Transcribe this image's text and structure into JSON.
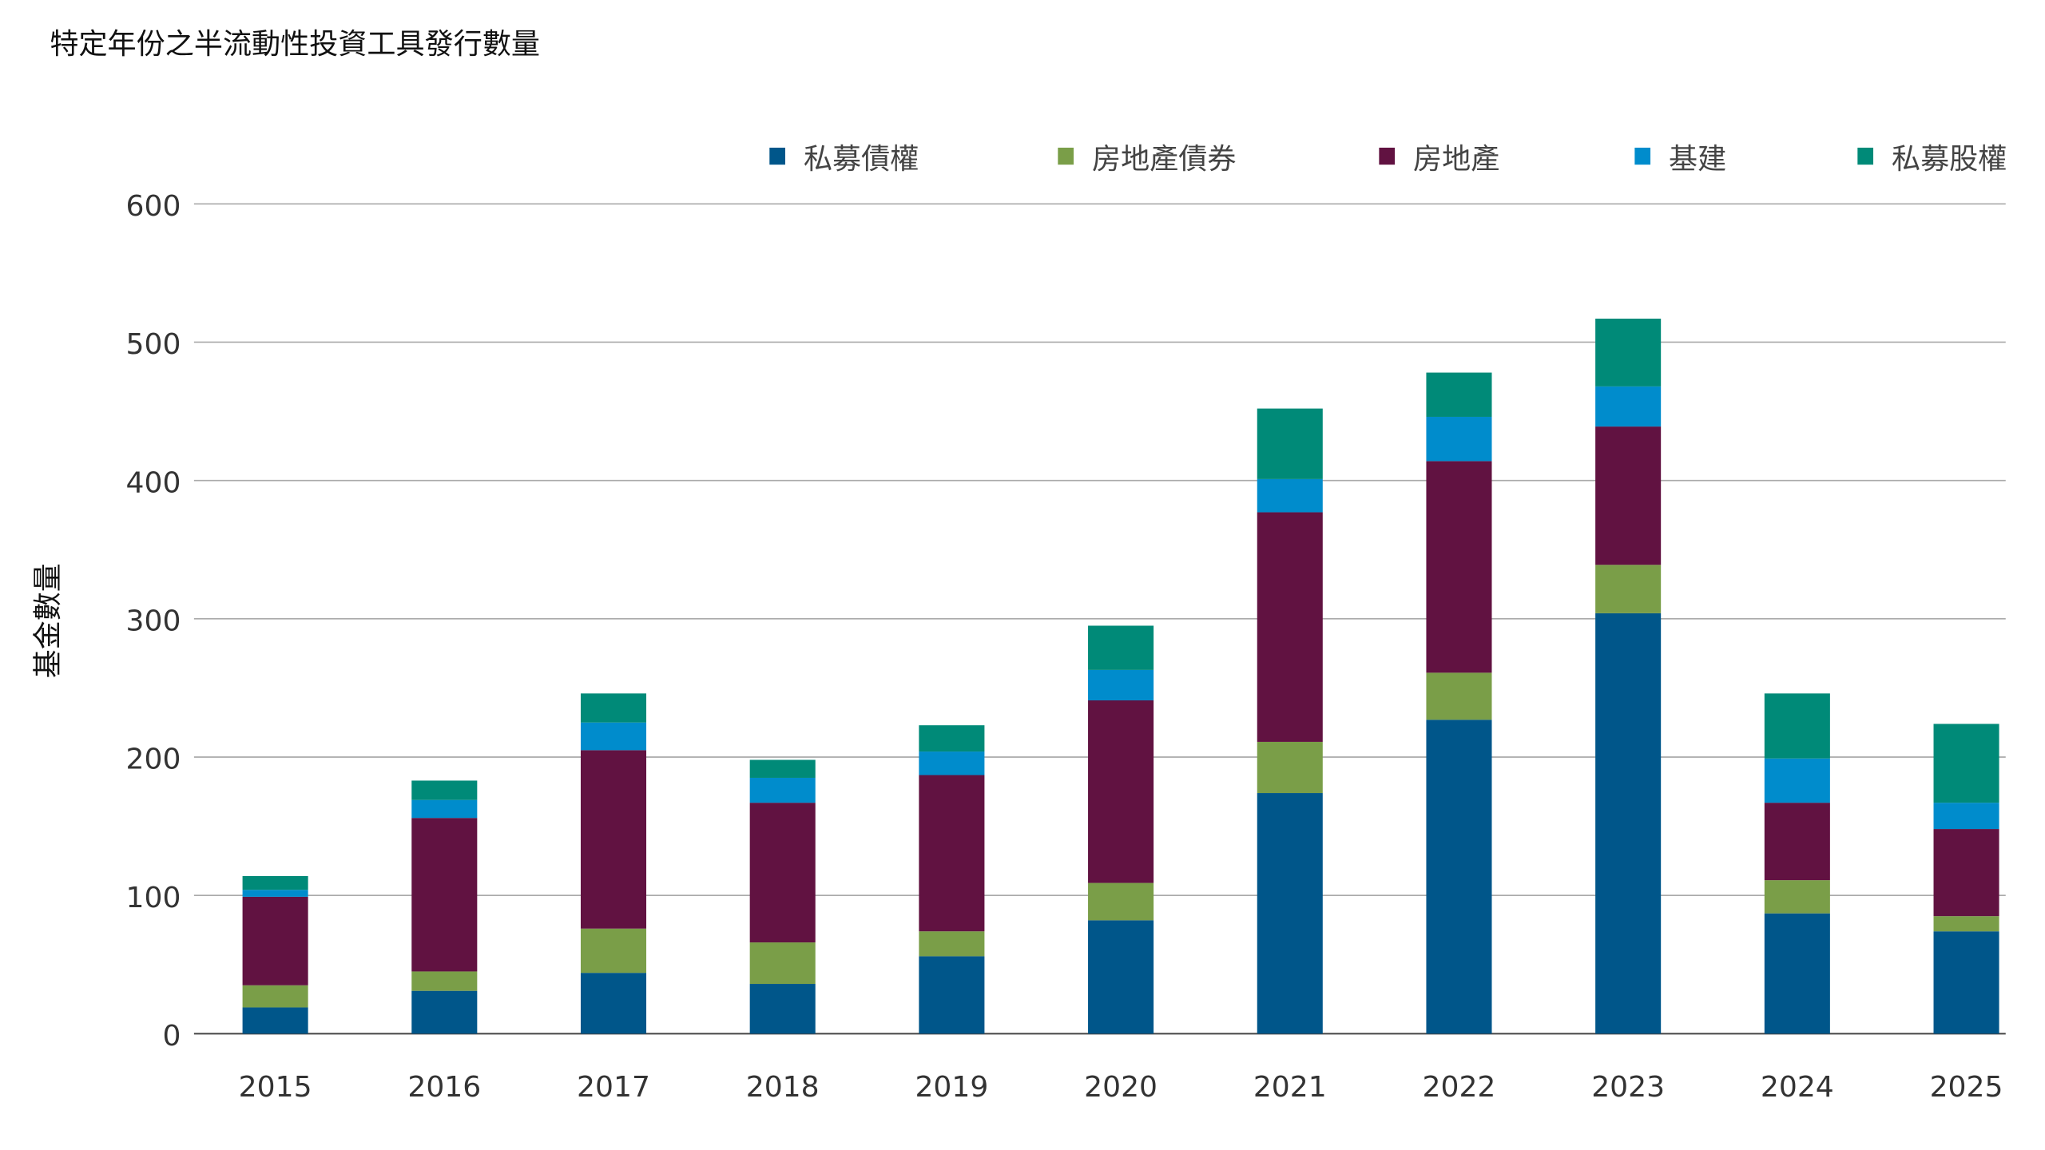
{
  "chart_data": {
    "type": "bar",
    "stacked": true,
    "title": "特定年份之半流動性投資工具發行數量",
    "xlabel": "",
    "ylabel": "基金數量",
    "ylim": [
      0,
      600
    ],
    "yticks": [
      "0",
      "100",
      "200",
      "300",
      "400",
      "500",
      "600"
    ],
    "grid": true,
    "legend_position": "top-right",
    "categories": [
      "2015",
      "2016",
      "2017",
      "2018",
      "2019",
      "2020",
      "2021",
      "2022",
      "2023",
      "2024",
      "2025"
    ],
    "series": [
      {
        "name": "私募債權",
        "color": "#00568a",
        "values": [
          19,
          31,
          44,
          36,
          56,
          82,
          174,
          227,
          304,
          87,
          74
        ]
      },
      {
        "name": "房地產債券",
        "color": "#7a9e48",
        "values": [
          16,
          14,
          32,
          30,
          18,
          27,
          37,
          34,
          35,
          24,
          11
        ]
      },
      {
        "name": "房地產",
        "color": "#611241",
        "values": [
          64,
          111,
          129,
          101,
          113,
          132,
          166,
          153,
          100,
          56,
          63
        ]
      },
      {
        "name": "基建",
        "color": "#008ccc",
        "values": [
          5,
          13,
          20,
          18,
          17,
          22,
          24,
          32,
          29,
          32,
          19
        ]
      },
      {
        "name": "私募股權",
        "color": "#008a78",
        "values": [
          10,
          14,
          21,
          13,
          19,
          32,
          51,
          32,
          49,
          47,
          57
        ]
      }
    ]
  }
}
